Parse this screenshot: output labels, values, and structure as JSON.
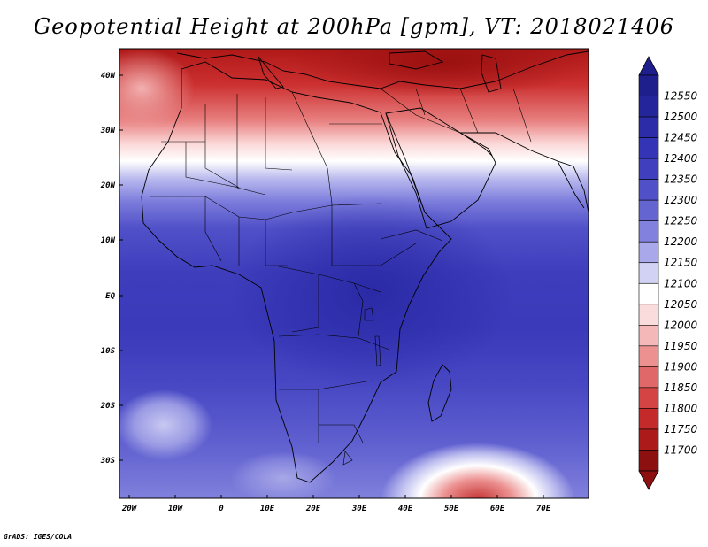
{
  "title": "Geopotential Height at 200hPa [gpm], VT: 2018021406",
  "footer": "GrADS: IGES/COLA",
  "map": {
    "lat_labels": [
      "40N",
      "30N",
      "20N",
      "10N",
      "EQ",
      "10S",
      "20S",
      "30S"
    ],
    "lon_labels": [
      "20W",
      "10W",
      "0",
      "10E",
      "20E",
      "30E",
      "40E",
      "50E",
      "60E",
      "70E"
    ]
  },
  "colorbar": {
    "levels": [
      "12550",
      "12500",
      "12450",
      "12400",
      "12350",
      "12300",
      "12250",
      "12200",
      "12150",
      "12100",
      "12050",
      "12000",
      "11950",
      "11900",
      "11850",
      "11800",
      "11750",
      "11700"
    ],
    "colors": [
      "#1e1e8c",
      "#25259b",
      "#2c2ca8",
      "#3434b6",
      "#4040bf",
      "#5050c8",
      "#6565d2",
      "#8282de",
      "#a8a8ea",
      "#d2d2f4",
      "#ffffff",
      "#fbdcdc",
      "#f4b8b8",
      "#ec9090",
      "#e06868",
      "#d44444",
      "#c42a2a",
      "#ac1a1a",
      "#8c1010"
    ]
  }
}
